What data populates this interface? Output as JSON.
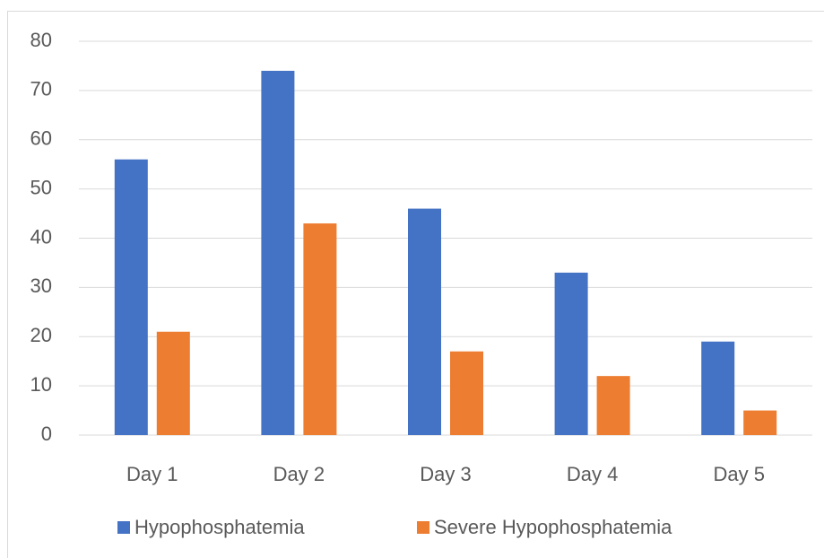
{
  "chart_data": {
    "type": "bar",
    "categories": [
      "Day 1",
      "Day 2",
      "Day 3",
      "Day 4",
      "Day 5"
    ],
    "series": [
      {
        "name": "Hypophosphatemia",
        "color": "#4472c4",
        "values": [
          56,
          74,
          46,
          33,
          19
        ]
      },
      {
        "name": "Severe Hypophosphatemia",
        "color": "#ed7d31",
        "values": [
          21,
          43,
          17,
          12,
          5
        ]
      }
    ],
    "ylim": [
      0,
      80
    ],
    "yticks": [
      0,
      10,
      20,
      30,
      40,
      50,
      60,
      70,
      80
    ],
    "grid": true,
    "legend": "bottom"
  }
}
